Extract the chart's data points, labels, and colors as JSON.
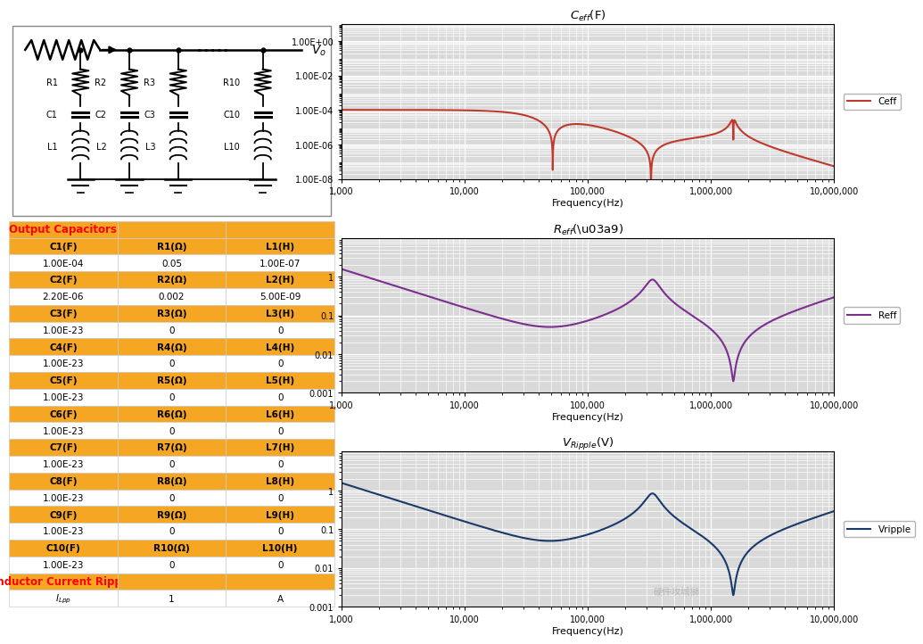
{
  "ceff_color": "#c0392b",
  "reff_color": "#7b2f8f",
  "vripple_color": "#1a3a6b",
  "table_orange": "#f5a623",
  "C1": 0.0001,
  "R1": 0.05,
  "L1": 1e-07,
  "C2": 2.2e-06,
  "R2": 0.002,
  "L2": 5e-09,
  "Ilpp": 1,
  "plot_bg": "#d9d9d9",
  "grid_color": "white",
  "ceff_ylim": [
    1e-08,
    10.0
  ],
  "reff_ylim": [
    0.001,
    10
  ],
  "vr_ylim": [
    0.001,
    10
  ],
  "freq_min": 1000,
  "freq_max": 10000000,
  "table_rows": [
    [
      "C1(F)",
      "R1(Ω)",
      "L1(H)"
    ],
    [
      "1.00E-04",
      "0.05",
      "1.00E-07"
    ],
    [
      "C2(F)",
      "R2(Ω)",
      "L2(H)"
    ],
    [
      "2.20E-06",
      "0.002",
      "5.00E-09"
    ],
    [
      "C3(F)",
      "R3(Ω)",
      "L3(H)"
    ],
    [
      "1.00E-23",
      "0",
      "0"
    ],
    [
      "C4(F)",
      "R4(Ω)",
      "L4(H)"
    ],
    [
      "1.00E-23",
      "0",
      "0"
    ],
    [
      "C5(F)",
      "R5(Ω)",
      "L5(H)"
    ],
    [
      "1.00E-23",
      "0",
      "0"
    ],
    [
      "C6(F)",
      "R6(Ω)",
      "L6(H)"
    ],
    [
      "1.00E-23",
      "0",
      "0"
    ],
    [
      "C7(F)",
      "R7(Ω)",
      "L7(H)"
    ],
    [
      "1.00E-23",
      "0",
      "0"
    ],
    [
      "C8(F)",
      "R8(Ω)",
      "L8(H)"
    ],
    [
      "1.00E-23",
      "0",
      "0"
    ],
    [
      "C9(F)",
      "R9(Ω)",
      "L9(H)"
    ],
    [
      "1.00E-23",
      "0",
      "0"
    ],
    [
      "C10(F)",
      "R10(Ω)",
      "L10(H)"
    ],
    [
      "1.00E-23",
      "0",
      "0"
    ]
  ]
}
